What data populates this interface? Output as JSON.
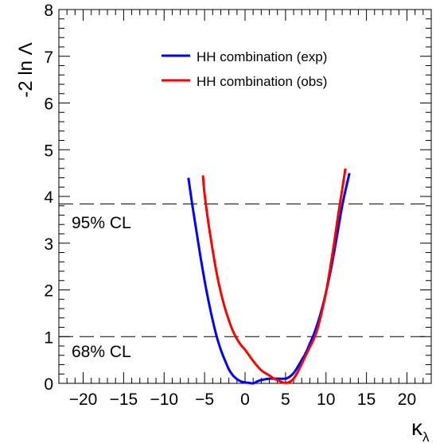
{
  "chart_data": {
    "type": "line",
    "xlabel": "κλ",
    "ylabel": "-2 ln Λ",
    "xlim": [
      -23,
      23
    ],
    "ylim": [
      0,
      8
    ],
    "x_ticks": [
      "−20",
      "−15",
      "−10",
      "−5",
      "0",
      "5",
      "10",
      "15",
      "20"
    ],
    "y_ticks": [
      "0",
      "1",
      "2",
      "3",
      "4",
      "5",
      "6",
      "7",
      "8"
    ],
    "legend_position": "top-right",
    "reference_lines": [
      {
        "y": 3.84,
        "label": "95% CL"
      },
      {
        "y": 1.0,
        "label": "68% CL"
      }
    ],
    "series": [
      {
        "name": "HH combination (exp)",
        "color": "#0000ff",
        "x": [
          -7.0,
          -6.5,
          -6.0,
          -5.5,
          -5.0,
          -4.5,
          -4.0,
          -3.5,
          -3.0,
          -2.5,
          -2.0,
          -1.5,
          -1.0,
          -0.5,
          0.0,
          0.5,
          1.0,
          1.5,
          2.0,
          3.0,
          4.0,
          5.0,
          5.5,
          6.0,
          6.5,
          7.0,
          7.5,
          8.0,
          8.5,
          9.0,
          9.5,
          10.0,
          10.5,
          11.0,
          11.5,
          12.0,
          12.5,
          12.9
        ],
        "y": [
          4.4,
          3.8,
          3.25,
          2.7,
          2.2,
          1.75,
          1.35,
          1.0,
          0.72,
          0.5,
          0.3,
          0.17,
          0.09,
          0.04,
          0.02,
          0.01,
          0.0,
          0.04,
          0.07,
          0.1,
          0.1,
          0.1,
          0.14,
          0.22,
          0.35,
          0.5,
          0.65,
          0.85,
          1.05,
          1.3,
          1.6,
          1.95,
          2.35,
          2.8,
          3.3,
          3.8,
          4.2,
          4.5
        ]
      },
      {
        "name": "HH combination (obs)",
        "color": "#ff0000",
        "x": [
          -5.2,
          -5.0,
          -4.5,
          -4.0,
          -3.5,
          -3.0,
          -2.5,
          -2.0,
          -1.5,
          -1.0,
          -0.5,
          0.0,
          0.5,
          1.0,
          2.0,
          3.0,
          3.5,
          4.0,
          4.5,
          5.0,
          5.5,
          6.0,
          6.5,
          7.0,
          7.5,
          8.0,
          8.5,
          9.0,
          9.5,
          10.0,
          10.5,
          11.0,
          11.5,
          12.0,
          12.4
        ],
        "y": [
          4.45,
          4.05,
          3.4,
          2.85,
          2.35,
          1.95,
          1.62,
          1.35,
          1.12,
          0.95,
          0.82,
          0.72,
          0.6,
          0.48,
          0.28,
          0.17,
          0.11,
          0.07,
          0.03,
          0.01,
          0.03,
          0.1,
          0.24,
          0.42,
          0.6,
          0.78,
          0.95,
          1.2,
          1.55,
          1.95,
          2.45,
          3.0,
          3.6,
          4.15,
          4.6
        ]
      }
    ]
  }
}
